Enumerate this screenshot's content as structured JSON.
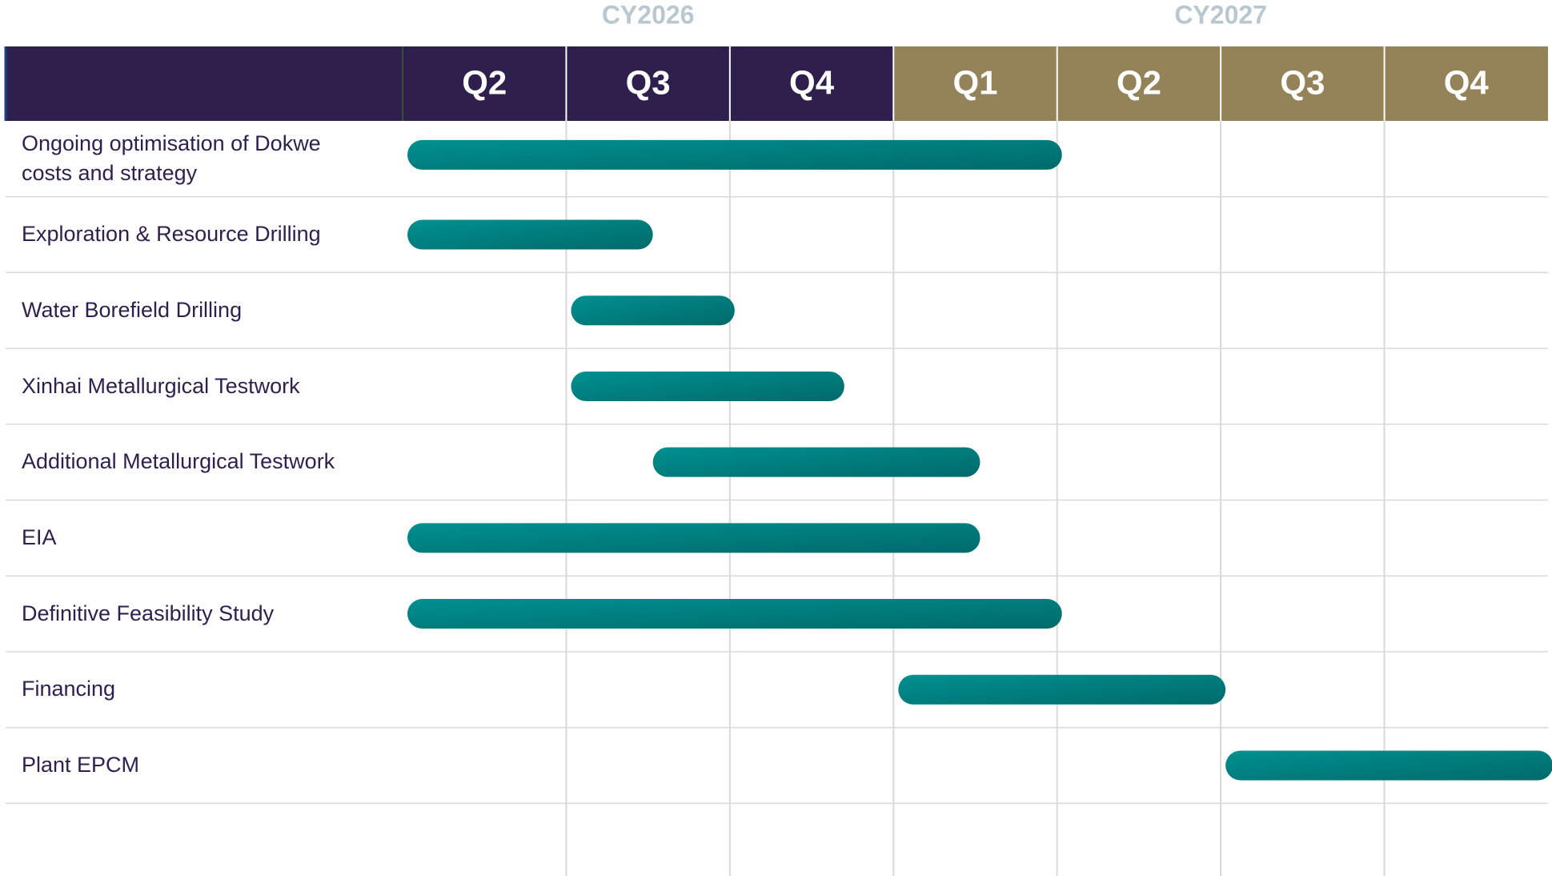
{
  "chart_data": {
    "type": "gantt",
    "years": [
      {
        "label": "CY2026",
        "span": 3,
        "color": "#2e1f4d"
      },
      {
        "label": "CY2027",
        "span": 4,
        "color": "#948359"
      }
    ],
    "quarters": [
      "Q2",
      "Q3",
      "Q4",
      "Q1",
      "Q2",
      "Q3",
      "Q4"
    ],
    "xlim": [
      0,
      7
    ],
    "bar_color": "#007b7b",
    "tasks": [
      {
        "name": "Ongoing optimisation of Dokwe costs and strategy",
        "start": 0,
        "end": 4
      },
      {
        "name": "Exploration & Resource Drilling",
        "start": 0,
        "end": 1.5
      },
      {
        "name": "Water Borefield Drilling",
        "start": 1,
        "end": 2
      },
      {
        "name": "Xinhai Metallurgical Testwork",
        "start": 1,
        "end": 2.67
      },
      {
        "name": "Additional Metallurgical Testwork",
        "start": 1.5,
        "end": 3.5
      },
      {
        "name": "EIA",
        "start": 0,
        "end": 3.5
      },
      {
        "name": "Definitive Feasibility Study",
        "start": 0,
        "end": 4
      },
      {
        "name": "Financing",
        "start": 3,
        "end": 5
      },
      {
        "name": "Plant EPCM",
        "start": 5,
        "end": 7
      }
    ]
  }
}
